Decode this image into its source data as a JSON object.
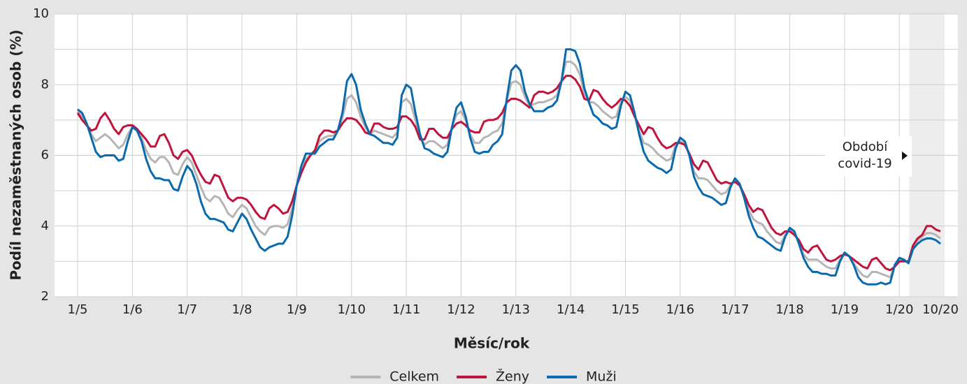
{
  "chart_data": {
    "type": "line",
    "ylabel": "Podíl nezaměstnaných osob (%)",
    "xlabel": "Měsíc/rok",
    "annotation": [
      "Období",
      "covid-19"
    ],
    "categories": [
      "1/5",
      null,
      null,
      null,
      null,
      null,
      null,
      null,
      null,
      null,
      null,
      null,
      "1/6",
      null,
      null,
      null,
      null,
      null,
      null,
      null,
      null,
      null,
      null,
      null,
      "1/7",
      null,
      null,
      null,
      null,
      null,
      null,
      null,
      null,
      null,
      null,
      null,
      "1/8",
      null,
      null,
      null,
      null,
      null,
      null,
      null,
      null,
      null,
      null,
      null,
      "1/9",
      null,
      null,
      null,
      null,
      null,
      null,
      null,
      null,
      null,
      null,
      null,
      "1/10",
      null,
      null,
      null,
      null,
      null,
      null,
      null,
      null,
      null,
      null,
      null,
      "1/11",
      null,
      null,
      null,
      null,
      null,
      null,
      null,
      null,
      null,
      null,
      null,
      "1/12",
      null,
      null,
      null,
      null,
      null,
      null,
      null,
      null,
      null,
      null,
      null,
      "1/13",
      null,
      null,
      null,
      null,
      null,
      null,
      null,
      null,
      null,
      null,
      null,
      "1/14",
      null,
      null,
      null,
      null,
      null,
      null,
      null,
      null,
      null,
      null,
      null,
      "1/15",
      null,
      null,
      null,
      null,
      null,
      null,
      null,
      null,
      null,
      null,
      null,
      "1/16",
      null,
      null,
      null,
      null,
      null,
      null,
      null,
      null,
      null,
      null,
      null,
      "1/17",
      null,
      null,
      null,
      null,
      null,
      null,
      null,
      null,
      null,
      null,
      null,
      "1/18",
      null,
      null,
      null,
      null,
      null,
      null,
      null,
      null,
      null,
      null,
      null,
      "1/19",
      null,
      null,
      null,
      null,
      null,
      null,
      null,
      null,
      null,
      null,
      null,
      "1/20",
      null,
      null,
      null,
      null,
      null,
      null,
      null,
      null,
      "10/20"
    ],
    "series": [
      {
        "name": "Celkem",
        "color": "#b5b5b5",
        "values": [
          7.25,
          7.1,
          6.85,
          6.6,
          6.4,
          6.5,
          6.6,
          6.5,
          6.35,
          6.2,
          6.3,
          6.6,
          6.8,
          6.7,
          6.5,
          6.15,
          5.9,
          5.8,
          5.95,
          5.95,
          5.8,
          5.5,
          5.45,
          5.75,
          5.95,
          5.8,
          5.45,
          5.1,
          4.8,
          4.7,
          4.85,
          4.8,
          4.6,
          4.35,
          4.25,
          4.45,
          4.6,
          4.5,
          4.25,
          4,
          3.85,
          3.75,
          3.95,
          4,
          4,
          3.95,
          4.05,
          4.5,
          5.15,
          5.6,
          5.9,
          6,
          6.1,
          6.4,
          6.5,
          6.55,
          6.55,
          6.7,
          7.05,
          7.6,
          7.7,
          7.5,
          7.1,
          6.8,
          6.6,
          6.7,
          6.65,
          6.6,
          6.55,
          6.5,
          6.65,
          7.5,
          7.6,
          7.45,
          7,
          6.5,
          6.3,
          6.4,
          6.4,
          6.3,
          6.2,
          6.3,
          6.8,
          7.15,
          7.25,
          7,
          6.6,
          6.35,
          6.35,
          6.5,
          6.55,
          6.65,
          6.7,
          6.9,
          7.55,
          8.05,
          8.1,
          8,
          7.65,
          7.4,
          7.45,
          7.5,
          7.5,
          7.55,
          7.6,
          7.7,
          8.1,
          8.65,
          8.65,
          8.55,
          8.3,
          7.75,
          7.5,
          7.5,
          7.4,
          7.25,
          7.15,
          7.05,
          7.1,
          7.5,
          7.65,
          7.55,
          7.15,
          6.7,
          6.35,
          6.3,
          6.2,
          6.05,
          5.95,
          5.85,
          5.9,
          6.3,
          6.4,
          6.35,
          6,
          5.55,
          5.35,
          5.35,
          5.3,
          5.15,
          5,
          4.9,
          4.95,
          5.15,
          5.3,
          5.2,
          4.85,
          4.45,
          4.2,
          4.1,
          4.05,
          3.85,
          3.7,
          3.55,
          3.5,
          3.75,
          3.9,
          3.8,
          3.55,
          3.2,
          3.05,
          3.05,
          3.05,
          2.95,
          2.85,
          2.8,
          2.8,
          3.05,
          3.2,
          3.15,
          2.95,
          2.75,
          2.6,
          2.55,
          2.7,
          2.7,
          2.65,
          2.6,
          2.55,
          2.85,
          3.05,
          3.05,
          2.95,
          3.4,
          3.6,
          3.7,
          3.8,
          3.8,
          3.75,
          3.65
        ]
      },
      {
        "name": "Ženy",
        "color": "#c0143c",
        "values": [
          7.2,
          7,
          6.85,
          6.7,
          6.75,
          7.05,
          7.2,
          7,
          6.75,
          6.6,
          6.8,
          6.85,
          6.85,
          6.75,
          6.6,
          6.45,
          6.25,
          6.25,
          6.55,
          6.6,
          6.35,
          6,
          5.9,
          6.1,
          6.15,
          6,
          5.7,
          5.45,
          5.25,
          5.2,
          5.45,
          5.4,
          5.1,
          4.8,
          4.7,
          4.8,
          4.8,
          4.75,
          4.6,
          4.4,
          4.25,
          4.2,
          4.5,
          4.6,
          4.5,
          4.35,
          4.4,
          4.7,
          5.15,
          5.5,
          5.8,
          6,
          6.15,
          6.55,
          6.7,
          6.7,
          6.65,
          6.7,
          6.9,
          7.05,
          7.05,
          7,
          6.85,
          6.65,
          6.6,
          6.9,
          6.9,
          6.8,
          6.75,
          6.75,
          6.8,
          7.1,
          7.1,
          7,
          6.8,
          6.45,
          6.45,
          6.75,
          6.75,
          6.6,
          6.5,
          6.5,
          6.75,
          6.9,
          6.95,
          6.85,
          6.7,
          6.65,
          6.65,
          6.95,
          7,
          7,
          7.05,
          7.2,
          7.5,
          7.6,
          7.6,
          7.55,
          7.45,
          7.35,
          7.7,
          7.8,
          7.8,
          7.75,
          7.8,
          7.9,
          8.1,
          8.25,
          8.25,
          8.15,
          7.95,
          7.6,
          7.55,
          7.85,
          7.8,
          7.6,
          7.45,
          7.35,
          7.45,
          7.6,
          7.55,
          7.4,
          7.1,
          6.85,
          6.6,
          6.8,
          6.75,
          6.5,
          6.3,
          6.2,
          6.25,
          6.35,
          6.35,
          6.3,
          6.05,
          5.75,
          5.6,
          5.85,
          5.8,
          5.55,
          5.3,
          5.2,
          5.25,
          5.2,
          5.25,
          5.15,
          4.9,
          4.6,
          4.4,
          4.5,
          4.45,
          4.2,
          3.95,
          3.8,
          3.75,
          3.85,
          3.85,
          3.75,
          3.6,
          3.35,
          3.25,
          3.4,
          3.45,
          3.25,
          3.05,
          3,
          3.05,
          3.15,
          3.2,
          3.15,
          3.05,
          2.95,
          2.85,
          2.8,
          3.05,
          3.1,
          2.95,
          2.8,
          2.75,
          2.85,
          3,
          3,
          3,
          3.45,
          3.65,
          3.75,
          4,
          4,
          3.9,
          3.85
        ]
      },
      {
        "name": "Muži",
        "color": "#0a6aad",
        "values": [
          7.3,
          7.2,
          6.9,
          6.5,
          6.1,
          5.95,
          6,
          6,
          6,
          5.85,
          5.9,
          6.4,
          6.8,
          6.7,
          6.4,
          5.9,
          5.55,
          5.35,
          5.35,
          5.3,
          5.3,
          5.05,
          5,
          5.4,
          5.7,
          5.55,
          5.2,
          4.7,
          4.35,
          4.2,
          4.2,
          4.15,
          4.1,
          3.9,
          3.85,
          4.1,
          4.35,
          4.2,
          3.9,
          3.65,
          3.4,
          3.3,
          3.4,
          3.45,
          3.5,
          3.5,
          3.7,
          4.3,
          5.15,
          5.7,
          6.05,
          6.05,
          6.05,
          6.25,
          6.35,
          6.45,
          6.45,
          6.7,
          7.2,
          8.1,
          8.3,
          8,
          7.3,
          6.9,
          6.6,
          6.55,
          6.45,
          6.35,
          6.35,
          6.3,
          6.5,
          7.7,
          8,
          7.9,
          7.2,
          6.6,
          6.2,
          6.15,
          6.05,
          6,
          5.95,
          6.1,
          6.8,
          7.35,
          7.5,
          7.1,
          6.5,
          6.1,
          6.05,
          6.1,
          6.1,
          6.3,
          6.4,
          6.6,
          7.6,
          8.4,
          8.55,
          8.4,
          7.8,
          7.45,
          7.25,
          7.25,
          7.25,
          7.35,
          7.4,
          7.55,
          8.1,
          9,
          9,
          8.95,
          8.6,
          7.9,
          7.5,
          7.15,
          7.05,
          6.9,
          6.85,
          6.75,
          6.8,
          7.4,
          7.8,
          7.7,
          7.2,
          6.6,
          6.1,
          5.85,
          5.75,
          5.65,
          5.6,
          5.5,
          5.6,
          6.2,
          6.5,
          6.4,
          6,
          5.4,
          5.1,
          4.9,
          4.85,
          4.8,
          4.7,
          4.6,
          4.65,
          5.1,
          5.35,
          5.2,
          4.8,
          4.3,
          3.95,
          3.7,
          3.65,
          3.55,
          3.45,
          3.35,
          3.3,
          3.7,
          3.95,
          3.85,
          3.5,
          3.1,
          2.85,
          2.7,
          2.7,
          2.65,
          2.65,
          2.6,
          2.6,
          3,
          3.25,
          3.15,
          2.9,
          2.55,
          2.4,
          2.35,
          2.35,
          2.35,
          2.4,
          2.35,
          2.4,
          2.9,
          3.1,
          3.05,
          2.95,
          3.35,
          3.5,
          3.6,
          3.65,
          3.65,
          3.6,
          3.5
        ]
      }
    ],
    "ylim": [
      2,
      10
    ],
    "yticks": [
      2,
      4,
      6,
      8,
      10
    ],
    "yminor": [
      3,
      5,
      7,
      9
    ],
    "grid": true,
    "legend": "bottom"
  }
}
